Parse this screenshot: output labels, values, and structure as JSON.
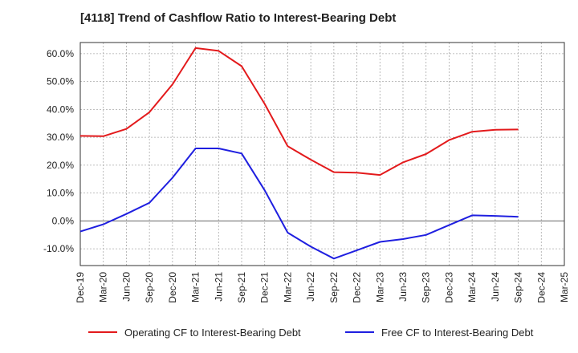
{
  "chart_data": {
    "type": "line",
    "title": "[4118]  Trend of Cashflow Ratio to Interest-Bearing Debt",
    "categories": [
      "Dec-19",
      "Mar-20",
      "Jun-20",
      "Sep-20",
      "Dec-20",
      "Mar-21",
      "Jun-21",
      "Sep-21",
      "Dec-21",
      "Mar-22",
      "Jun-22",
      "Sep-22",
      "Dec-22",
      "Mar-23",
      "Jun-23",
      "Sep-23",
      "Dec-23",
      "Mar-24",
      "Jun-24",
      "Sep-24",
      "Dec-24",
      "Mar-25"
    ],
    "series": [
      {
        "name": "Operating CF to Interest-Bearing Debt",
        "color": "#e31a1c",
        "values": [
          30.5,
          30.4,
          33.0,
          39.0,
          49.0,
          62.0,
          61.0,
          55.5,
          42.0,
          26.8,
          22.0,
          17.5,
          17.3,
          16.5,
          21.0,
          24.0,
          29.0,
          32.0,
          32.7,
          32.8,
          null,
          null
        ]
      },
      {
        "name": "Free CF to Interest-Bearing Debt",
        "color": "#1f1fe0",
        "values": [
          -3.8,
          -1.2,
          2.5,
          6.5,
          15.5,
          26.0,
          26.0,
          24.2,
          11.0,
          -4.2,
          -9.2,
          -13.5,
          -10.5,
          -7.5,
          -6.5,
          -5.0,
          -1.5,
          2.0,
          1.8,
          1.5,
          null,
          null
        ]
      }
    ],
    "yticks": [
      "60.0%",
      "50.0%",
      "40.0%",
      "30.0%",
      "20.0%",
      "10.0%",
      "0.0%",
      "-10.0%"
    ],
    "ylim": [
      -16,
      64
    ],
    "grid": true,
    "legend": "bottom"
  }
}
